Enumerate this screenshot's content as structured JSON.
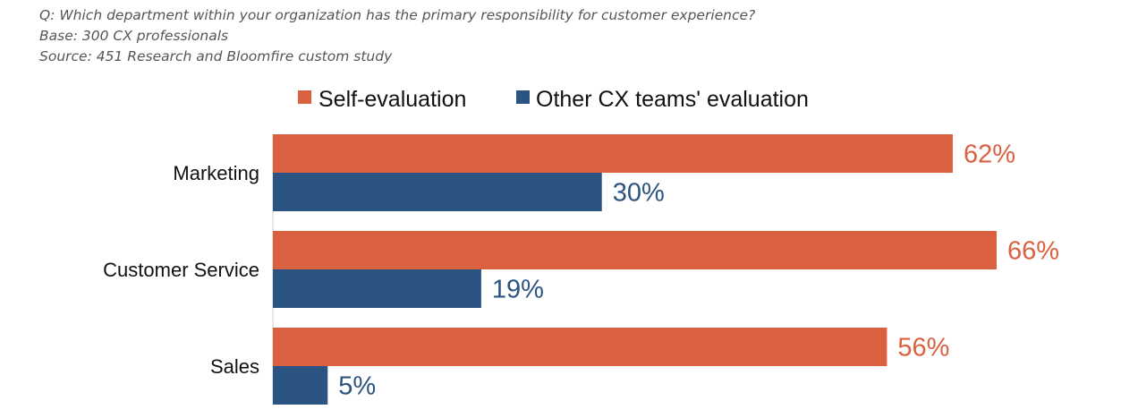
{
  "header": {
    "question": "Q: Which department within your organization has the primary responsibility for customer experience?",
    "base": "Base: 300 CX professionals",
    "source": "Source: 451 Research and Bloomfire custom study"
  },
  "chart_data": {
    "type": "bar",
    "orientation": "horizontal",
    "categories": [
      "Marketing",
      "Customer Service",
      "Sales"
    ],
    "series": [
      {
        "name": "Self-evaluation",
        "values": [
          62,
          66,
          56
        ],
        "labels": [
          "62%",
          "66%",
          "56%"
        ],
        "color": "#DA6140"
      },
      {
        "name": "Other CX teams' evaluation",
        "values": [
          30,
          19,
          5
        ],
        "labels": [
          "30%",
          "19%",
          "5%"
        ],
        "color": "#2C5482"
      }
    ],
    "value_unit": "%",
    "xlim": [
      0,
      66
    ],
    "grid": false,
    "legend_position": "top-center"
  }
}
